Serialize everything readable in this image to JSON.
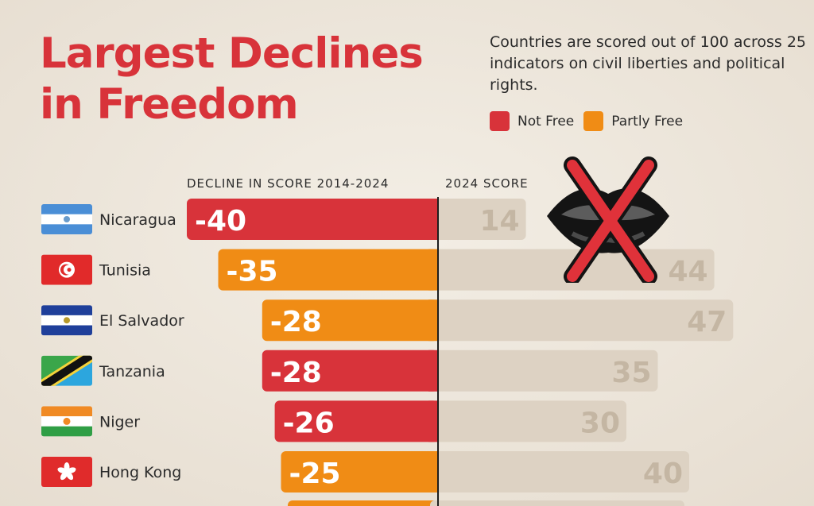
{
  "title_lines": [
    "Largest Declines",
    "in Freedom"
  ],
  "note": "Countries are scored out of 100 across 25 indicators on civil liberties and political rights.",
  "legend": [
    {
      "label": "Not Free",
      "color": "#d8333a"
    },
    {
      "label": "Partly Free",
      "color": "#f08c15"
    }
  ],
  "col_headers": {
    "decline": "DECLINE IN SCORE 2014-2024",
    "score": "2024 SCORE"
  },
  "chart_data": {
    "type": "bar",
    "categories": [
      "Nicaragua",
      "Tunisia",
      "El Salvador",
      "Tanzania",
      "Niger",
      "Hong Kong"
    ],
    "series": [
      {
        "name": "DECLINE IN SCORE 2014-2024",
        "values": [
          -40,
          -35,
          -28,
          -28,
          -26,
          -25
        ]
      },
      {
        "name": "2024 SCORE",
        "values": [
          14,
          44,
          47,
          35,
          30,
          40
        ]
      }
    ],
    "status": [
      "Not Free",
      "Partly Free",
      "Partly Free",
      "Not Free",
      "Not Free",
      "Partly Free"
    ],
    "flags": [
      "nicaragua-flag-icon",
      "tunisia-flag-icon",
      "el-salvador-flag-icon",
      "tanzania-flag-icon",
      "niger-flag-icon",
      "hong-kong-flag-icon"
    ],
    "colors": {
      "Not Free": "#d8333a",
      "Partly Free": "#f08c15",
      "score_bar": "#ddd2c3",
      "score_text": "#c4b6a3"
    }
  }
}
